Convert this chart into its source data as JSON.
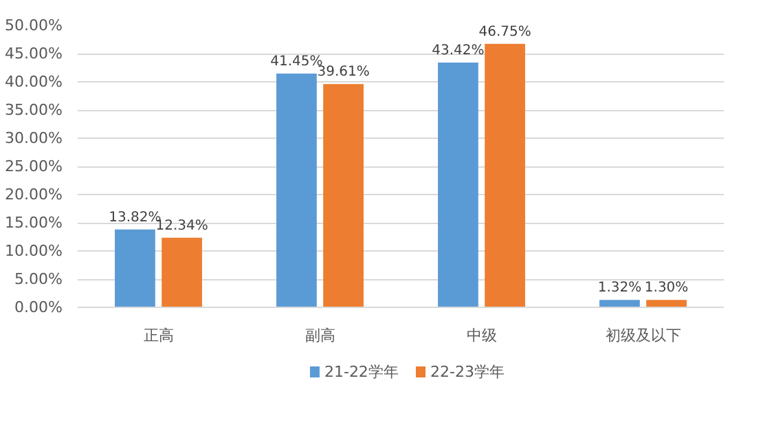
{
  "chart_data": {
    "type": "bar",
    "categories": [
      "正高",
      "副高",
      "中级",
      "初级及以下"
    ],
    "series": [
      {
        "name": "21-22学年",
        "color": "#5b9bd5",
        "values": [
          13.82,
          41.45,
          43.42,
          1.32
        ],
        "value_labels": [
          "13.82%",
          "41.45%",
          "43.42%",
          "1.32%"
        ]
      },
      {
        "name": "22-23学年",
        "color": "#ed7d31",
        "values": [
          12.34,
          39.61,
          46.75,
          1.3
        ],
        "value_labels": [
          "12.34%",
          "39.61%",
          "46.75%",
          "1.30%"
        ]
      }
    ],
    "ylim": [
      0,
      50
    ],
    "yticks": [
      {
        "value": 0,
        "label": "0.00%"
      },
      {
        "value": 5,
        "label": "5.00%"
      },
      {
        "value": 10,
        "label": "10.00%"
      },
      {
        "value": 15,
        "label": "15.00%"
      },
      {
        "value": 20,
        "label": "20.00%"
      },
      {
        "value": 25,
        "label": "25.00%"
      },
      {
        "value": 30,
        "label": "30.00%"
      },
      {
        "value": 35,
        "label": "35.00%"
      },
      {
        "value": 40,
        "label": "40.00%"
      },
      {
        "value": 45,
        "label": "45.00%"
      },
      {
        "value": 50,
        "label": "50.00%"
      }
    ],
    "grid": "y",
    "legend": "bottom"
  }
}
